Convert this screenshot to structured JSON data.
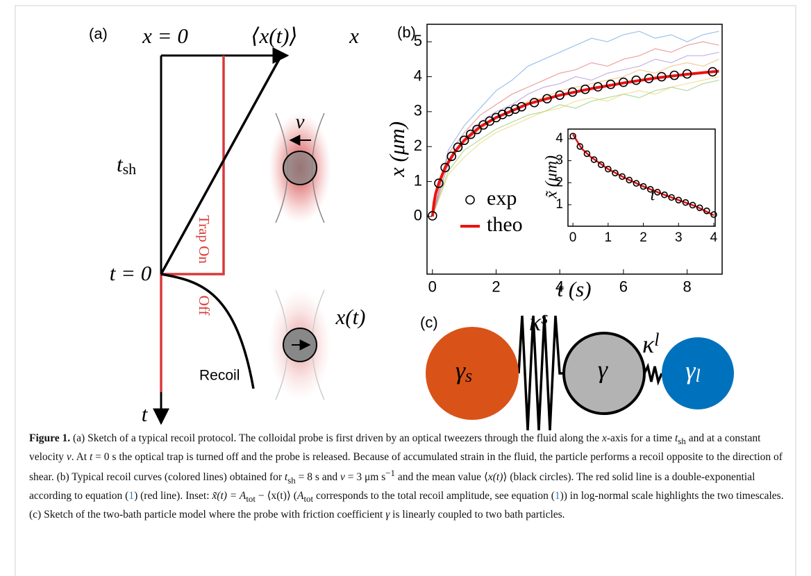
{
  "panel_a": {
    "label": "(a)",
    "x0": "x = 0",
    "mean": "⟨x(t)⟩",
    "x_axis": "x",
    "t_axis": "t",
    "tsh": {
      "symbol": "t",
      "sub": "sh"
    },
    "t0": "t = 0",
    "trap_on": "Trap On",
    "trap_off": "Off",
    "recoil": "Recoil",
    "velocity": "v",
    "position": "x(t)"
  },
  "chart_data": [
    {
      "type": "line",
      "label": "(b)",
      "xlabel": "t (s)",
      "ylabel": "x (μm)",
      "xlim": [
        -0.17,
        9.1
      ],
      "ylim": [
        -1.65,
        5.5
      ],
      "xticks": [
        0,
        2,
        4,
        6,
        8
      ],
      "yticks": [
        0,
        1,
        2,
        3,
        4,
        5
      ],
      "legend": "lower left",
      "series": [
        {
          "color": "#4a90d9",
          "x": [
            0,
            0.5,
            1,
            1.5,
            2,
            2.5,
            3,
            3.5,
            4,
            4.5,
            5,
            5.5,
            6,
            6.5,
            7,
            7.5,
            8,
            8.5,
            9
          ],
          "values": [
            0,
            1.9,
            2.6,
            3.1,
            3.6,
            3.9,
            4.3,
            4.5,
            4.7,
            4.9,
            5.1,
            5.0,
            5.2,
            5.3,
            5.1,
            5.2,
            5.0,
            5.2,
            5.3
          ]
        },
        {
          "color": "#e8a33d",
          "x": [
            0,
            0.5,
            1,
            1.5,
            2,
            2.5,
            3,
            3.5,
            4,
            4.5,
            5,
            5.5,
            6,
            6.5,
            7,
            7.5,
            8,
            8.5,
            9
          ],
          "values": [
            0,
            1.6,
            2.1,
            2.5,
            2.8,
            3.0,
            3.3,
            3.4,
            3.6,
            3.7,
            3.8,
            3.9,
            4.0,
            4.2,
            4.1,
            4.3,
            4.4,
            4.3,
            4.5
          ]
        },
        {
          "color": "#6fbf4a",
          "x": [
            0,
            0.5,
            1,
            1.5,
            2,
            2.5,
            3,
            3.5,
            4,
            4.5,
            5,
            5.5,
            6,
            6.5,
            7,
            7.5,
            8,
            8.5,
            9
          ],
          "values": [
            0,
            1.3,
            1.9,
            2.2,
            2.5,
            2.7,
            2.9,
            3.0,
            3.2,
            3.1,
            3.3,
            3.4,
            3.5,
            3.4,
            3.6,
            3.7,
            3.6,
            3.8,
            3.9
          ]
        },
        {
          "color": "#d9534f",
          "x": [
            0,
            0.5,
            1,
            1.5,
            2,
            2.5,
            3,
            3.5,
            4,
            4.5,
            5,
            5.5,
            6,
            6.5,
            7,
            7.5,
            8,
            8.5,
            9
          ],
          "values": [
            0,
            1.8,
            2.4,
            2.9,
            3.2,
            3.5,
            3.7,
            3.9,
            4.1,
            4.2,
            4.4,
            4.3,
            4.5,
            4.6,
            4.8,
            4.7,
            4.9,
            5.0,
            4.9
          ]
        },
        {
          "color": "#9b6fcf",
          "x": [
            0,
            0.5,
            1,
            1.5,
            2,
            2.5,
            3,
            3.5,
            4,
            4.5,
            5,
            5.5,
            6,
            6.5,
            7,
            7.5,
            8,
            8.5,
            9
          ],
          "values": [
            0,
            1.5,
            2.2,
            2.7,
            3.0,
            3.2,
            3.5,
            3.7,
            3.8,
            4.0,
            3.9,
            4.1,
            4.2,
            4.3,
            4.5,
            4.4,
            4.6,
            4.6,
            4.7
          ]
        },
        {
          "color": "#e6c84a",
          "x": [
            0,
            0.5,
            1,
            1.5,
            2,
            2.5,
            3,
            3.5,
            4,
            4.5,
            5,
            5.5,
            6,
            6.5,
            7,
            7.5,
            8,
            8.5,
            9
          ],
          "values": [
            0,
            1.2,
            1.7,
            2.1,
            2.4,
            2.6,
            2.8,
            3.0,
            3.1,
            3.3,
            3.4,
            3.3,
            3.5,
            3.6,
            3.5,
            3.7,
            3.8,
            3.9,
            4.0
          ]
        },
        {
          "name": "exp",
          "color": "#000000",
          "marker": "circle",
          "x": [
            0,
            0.2,
            0.4,
            0.6,
            0.8,
            1.0,
            1.2,
            1.4,
            1.6,
            1.8,
            2.0,
            2.2,
            2.4,
            2.6,
            2.8,
            3.2,
            3.6,
            4.0,
            4.4,
            4.8,
            5.2,
            5.6,
            6.0,
            6.4,
            6.8,
            7.2,
            7.6,
            8.0,
            8.8
          ],
          "values": [
            0.02,
            0.95,
            1.4,
            1.72,
            1.98,
            2.18,
            2.35,
            2.49,
            2.62,
            2.73,
            2.83,
            2.92,
            3.0,
            3.07,
            3.14,
            3.26,
            3.37,
            3.47,
            3.56,
            3.64,
            3.71,
            3.78,
            3.84,
            3.9,
            3.95,
            4.0,
            4.04,
            4.08,
            4.14
          ]
        },
        {
          "name": "theo",
          "color": "#ee1111",
          "x": [
            0,
            0.05,
            0.1,
            0.2,
            0.4,
            0.7,
            1,
            1.5,
            2,
            3,
            4,
            5,
            6,
            7,
            8,
            9
          ],
          "values": [
            0,
            0.4,
            0.65,
            0.95,
            1.4,
            1.85,
            2.18,
            2.57,
            2.83,
            3.22,
            3.47,
            3.66,
            3.82,
            3.96,
            4.07,
            4.16
          ]
        }
      ]
    },
    {
      "type": "line",
      "xlabel": "t",
      "ylabel": "x̃ (μm)",
      "xlim": [
        -0.14,
        4.04
      ],
      "ylim": [
        0.02,
        4.44
      ],
      "xticks": [
        0,
        1,
        2,
        3,
        4
      ],
      "yticks": [
        1,
        2,
        3,
        4
      ],
      "series": [
        {
          "color": "#000000",
          "marker": "circle",
          "x": [
            0,
            0.2,
            0.4,
            0.6,
            0.8,
            1.0,
            1.2,
            1.4,
            1.6,
            1.8,
            2.0,
            2.2,
            2.4,
            2.6,
            2.8,
            3.0,
            3.2,
            3.4,
            3.6,
            3.8,
            4.0
          ],
          "values": [
            4.12,
            3.65,
            3.32,
            3.05,
            2.82,
            2.62,
            2.44,
            2.28,
            2.12,
            1.97,
            1.83,
            1.7,
            1.57,
            1.45,
            1.33,
            1.21,
            1.1,
            0.98,
            0.86,
            0.72,
            0.55
          ]
        },
        {
          "color": "#ee1111",
          "x": [
            0,
            0.25,
            0.5,
            1,
            1.5,
            2,
            2.5,
            3,
            3.5,
            4
          ],
          "values": [
            4.2,
            3.55,
            3.18,
            2.62,
            2.2,
            1.83,
            1.51,
            1.21,
            0.92,
            0.52
          ]
        }
      ]
    }
  ],
  "panel_c": {
    "label": "(c)",
    "kappa_s": {
      "symbol": "κ",
      "sub": "s"
    },
    "kappa_l": {
      "symbol": "κ",
      "sub": "l"
    },
    "gamma_s": {
      "symbol": "γ",
      "sub": "s"
    },
    "gamma": "γ",
    "gamma_l": {
      "symbol": "γ",
      "sub": "l"
    }
  },
  "caption": {
    "label": "Figure 1.",
    "parts": [
      " (a) Sketch of a typical recoil protocol. The colloidal probe is first driven by an optical tweezers through the fluid along the ",
      "x",
      "-axis for a time ",
      "t",
      "sh",
      " and at a constant velocity ",
      "v",
      ". At ",
      "t",
      " = 0 s the optical trap is turned off and the probe is released. Because of accumulated strain in the fluid, the particle performs a recoil opposite to the direction of shear. (b) Typical recoil curves (colored lines) obtained for ",
      "t",
      "sh",
      " = 8 s and ",
      "v",
      " = 3 μm s",
      "−1",
      " and the mean value ⟨",
      "x(t)",
      "⟩ (black circles). The red solid line is a double-exponential according to equation (",
      "1",
      ") (red line). Inset: ",
      "x̃(t) = A",
      "tot",
      " − ⟨x(t)⟩ (",
      "A",
      "tot",
      " corresponds to the total recoil amplitude, see equation (",
      "1",
      ")) in log-normal scale highlights the two timescales. (c) Sketch of the two-bath particle model where the probe with friction coefficient ",
      "γ",
      " is linearly coupled to two bath particles."
    ]
  }
}
